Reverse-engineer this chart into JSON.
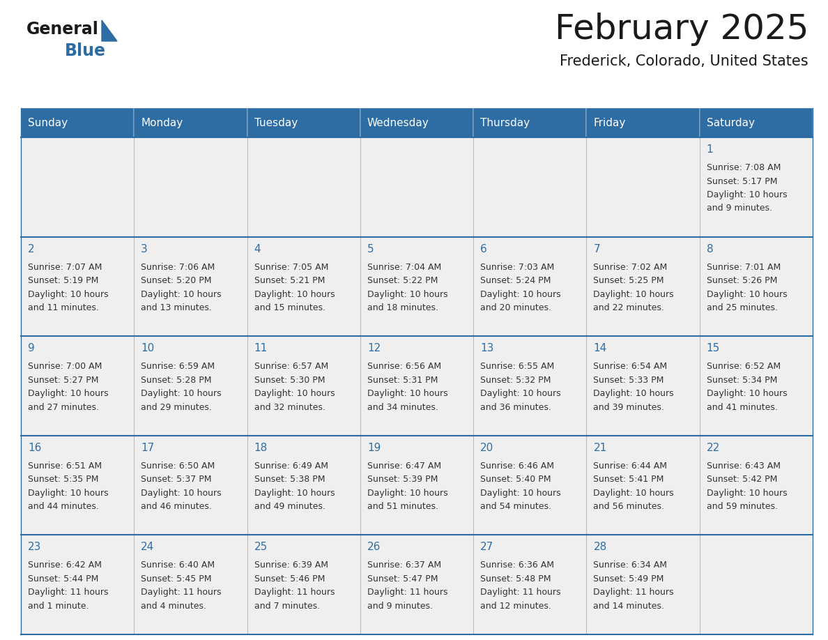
{
  "title": "February 2025",
  "subtitle": "Frederick, Colorado, United States",
  "header_bg_color": "#2E6DA4",
  "header_text_color": "#FFFFFF",
  "cell_bg_color": "#EFEFEF",
  "cell_text_color": "#333333",
  "day_num_color": "#2E6DA4",
  "border_color": "#2E6DA4",
  "cell_border_color": "#AAAAAA",
  "days_of_week": [
    "Sunday",
    "Monday",
    "Tuesday",
    "Wednesday",
    "Thursday",
    "Friday",
    "Saturday"
  ],
  "calendar_data": [
    [
      null,
      null,
      null,
      null,
      null,
      null,
      {
        "day": 1,
        "sunrise": "7:08 AM",
        "sunset": "5:17 PM",
        "daylight": "10 hours\nand 9 minutes."
      }
    ],
    [
      {
        "day": 2,
        "sunrise": "7:07 AM",
        "sunset": "5:19 PM",
        "daylight": "10 hours\nand 11 minutes."
      },
      {
        "day": 3,
        "sunrise": "7:06 AM",
        "sunset": "5:20 PM",
        "daylight": "10 hours\nand 13 minutes."
      },
      {
        "day": 4,
        "sunrise": "7:05 AM",
        "sunset": "5:21 PM",
        "daylight": "10 hours\nand 15 minutes."
      },
      {
        "day": 5,
        "sunrise": "7:04 AM",
        "sunset": "5:22 PM",
        "daylight": "10 hours\nand 18 minutes."
      },
      {
        "day": 6,
        "sunrise": "7:03 AM",
        "sunset": "5:24 PM",
        "daylight": "10 hours\nand 20 minutes."
      },
      {
        "day": 7,
        "sunrise": "7:02 AM",
        "sunset": "5:25 PM",
        "daylight": "10 hours\nand 22 minutes."
      },
      {
        "day": 8,
        "sunrise": "7:01 AM",
        "sunset": "5:26 PM",
        "daylight": "10 hours\nand 25 minutes."
      }
    ],
    [
      {
        "day": 9,
        "sunrise": "7:00 AM",
        "sunset": "5:27 PM",
        "daylight": "10 hours\nand 27 minutes."
      },
      {
        "day": 10,
        "sunrise": "6:59 AM",
        "sunset": "5:28 PM",
        "daylight": "10 hours\nand 29 minutes."
      },
      {
        "day": 11,
        "sunrise": "6:57 AM",
        "sunset": "5:30 PM",
        "daylight": "10 hours\nand 32 minutes."
      },
      {
        "day": 12,
        "sunrise": "6:56 AM",
        "sunset": "5:31 PM",
        "daylight": "10 hours\nand 34 minutes."
      },
      {
        "day": 13,
        "sunrise": "6:55 AM",
        "sunset": "5:32 PM",
        "daylight": "10 hours\nand 36 minutes."
      },
      {
        "day": 14,
        "sunrise": "6:54 AM",
        "sunset": "5:33 PM",
        "daylight": "10 hours\nand 39 minutes."
      },
      {
        "day": 15,
        "sunrise": "6:52 AM",
        "sunset": "5:34 PM",
        "daylight": "10 hours\nand 41 minutes."
      }
    ],
    [
      {
        "day": 16,
        "sunrise": "6:51 AM",
        "sunset": "5:35 PM",
        "daylight": "10 hours\nand 44 minutes."
      },
      {
        "day": 17,
        "sunrise": "6:50 AM",
        "sunset": "5:37 PM",
        "daylight": "10 hours\nand 46 minutes."
      },
      {
        "day": 18,
        "sunrise": "6:49 AM",
        "sunset": "5:38 PM",
        "daylight": "10 hours\nand 49 minutes."
      },
      {
        "day": 19,
        "sunrise": "6:47 AM",
        "sunset": "5:39 PM",
        "daylight": "10 hours\nand 51 minutes."
      },
      {
        "day": 20,
        "sunrise": "6:46 AM",
        "sunset": "5:40 PM",
        "daylight": "10 hours\nand 54 minutes."
      },
      {
        "day": 21,
        "sunrise": "6:44 AM",
        "sunset": "5:41 PM",
        "daylight": "10 hours\nand 56 minutes."
      },
      {
        "day": 22,
        "sunrise": "6:43 AM",
        "sunset": "5:42 PM",
        "daylight": "10 hours\nand 59 minutes."
      }
    ],
    [
      {
        "day": 23,
        "sunrise": "6:42 AM",
        "sunset": "5:44 PM",
        "daylight": "11 hours\nand 1 minute."
      },
      {
        "day": 24,
        "sunrise": "6:40 AM",
        "sunset": "5:45 PM",
        "daylight": "11 hours\nand 4 minutes."
      },
      {
        "day": 25,
        "sunrise": "6:39 AM",
        "sunset": "5:46 PM",
        "daylight": "11 hours\nand 7 minutes."
      },
      {
        "day": 26,
        "sunrise": "6:37 AM",
        "sunset": "5:47 PM",
        "daylight": "11 hours\nand 9 minutes."
      },
      {
        "day": 27,
        "sunrise": "6:36 AM",
        "sunset": "5:48 PM",
        "daylight": "11 hours\nand 12 minutes."
      },
      {
        "day": 28,
        "sunrise": "6:34 AM",
        "sunset": "5:49 PM",
        "daylight": "11 hours\nand 14 minutes."
      },
      null
    ]
  ],
  "logo_text_general": "General",
  "logo_text_blue": "Blue",
  "logo_triangle_color": "#2E6DA4",
  "title_fontsize": 36,
  "subtitle_fontsize": 15,
  "header_fontsize": 11,
  "day_num_fontsize": 11,
  "cell_text_fontsize": 9
}
